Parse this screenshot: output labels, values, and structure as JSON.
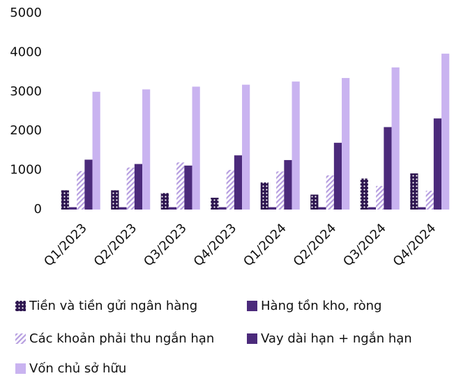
{
  "chart_data": {
    "type": "bar",
    "categories": [
      "Q1/2023",
      "Q2/2023",
      "Q3/2023",
      "Q4/2023",
      "Q1/2024",
      "Q2/2024",
      "Q3/2024",
      "Q4/2024"
    ],
    "series": [
      {
        "name": "Tiền và tiền gửi ngân hàng",
        "color": "#3b1f5e",
        "pattern": "dots",
        "values": [
          490,
          490,
          420,
          300,
          690,
          380,
          790,
          920
        ]
      },
      {
        "name": "Hàng tồn kho, ròng",
        "color": "#4b2a7b",
        "values": [
          60,
          60,
          60,
          60,
          60,
          60,
          60,
          60
        ]
      },
      {
        "name": "Các khoản phải thu ngắn hạn",
        "color": "#b69ee0",
        "pattern": "hatch",
        "values": [
          980,
          1070,
          1200,
          1010,
          970,
          870,
          600,
          480
        ]
      },
      {
        "name": "Vay dài hạn + ngắn hạn",
        "color": "#4b2a7b",
        "values": [
          1270,
          1160,
          1120,
          1380,
          1260,
          1700,
          2100,
          2320
        ]
      },
      {
        "name": "Vốn chủ sở hữu",
        "color": "#c9b3f0",
        "values": [
          3000,
          3060,
          3130,
          3180,
          3260,
          3350,
          3620,
          3970
        ]
      }
    ],
    "ylim": [
      0,
      5000
    ],
    "yticks": [
      0,
      1000,
      2000,
      3000,
      4000,
      5000
    ],
    "grid": false
  }
}
